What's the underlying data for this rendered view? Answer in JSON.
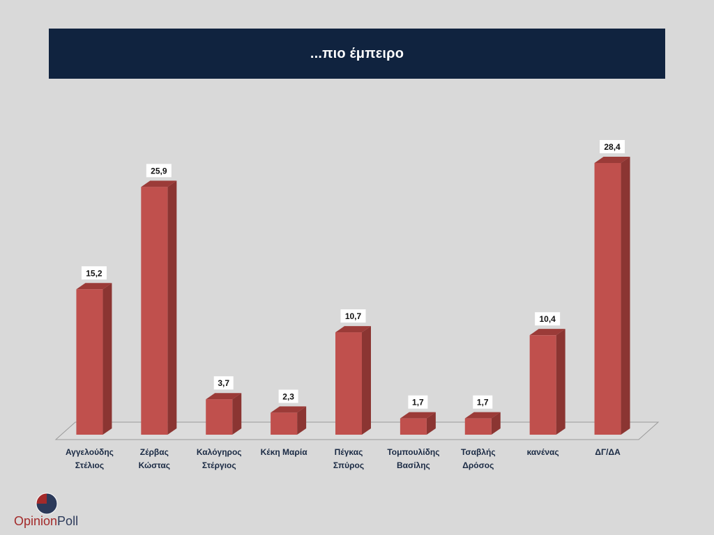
{
  "header": {
    "title": "...πιο έμπειρο"
  },
  "chart_data": {
    "type": "bar",
    "title": "...πιο έμπειρο",
    "categories": [
      [
        "Αγγελούδης",
        "Στέλιος"
      ],
      [
        "Ζέρβας",
        "Κώστας"
      ],
      [
        "Καλόγηρος",
        "Στέργιος"
      ],
      [
        "Κέκη Μαρία"
      ],
      [
        "Πέγκας",
        "Σπύρος"
      ],
      [
        "Τομπουλίδης",
        "Βασίλης"
      ],
      [
        "Τσαβλής",
        "Δρόσος"
      ],
      [
        "κανένας"
      ],
      [
        "ΔΓ/ΔΑ"
      ]
    ],
    "values": [
      15.2,
      25.9,
      3.7,
      2.3,
      10.7,
      1.7,
      1.7,
      10.4,
      28.4
    ],
    "value_labels": [
      "15,2",
      "25,9",
      "3,7",
      "2,3",
      "10,7",
      "1,7",
      "1,7",
      "10,4",
      "28,4"
    ],
    "ylim": [
      0,
      30
    ],
    "grid": false,
    "bar_color": "#c0504d",
    "bar_side_color": "#8b3532",
    "bar_top_color": "#9b3b38"
  },
  "logo": {
    "part1": "Opinion",
    "part2": "Poll",
    "colors": [
      "#a32a2a",
      "#2c3a5a"
    ]
  }
}
